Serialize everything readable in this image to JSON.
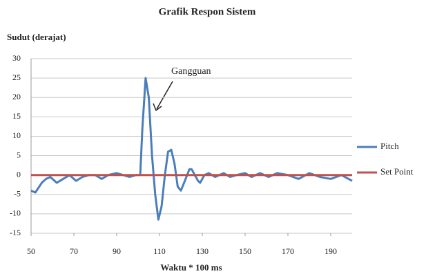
{
  "chart_data": {
    "type": "line",
    "title": "Grafik Respon Sistem",
    "ylabel": "Sudut (derajat)",
    "xlabel": "Waktu * 100 ms",
    "annotation": "Gangguan",
    "xlim": [
      50,
      200
    ],
    "xticks": [
      50,
      70,
      90,
      110,
      130,
      150,
      170,
      190
    ],
    "ylim": [
      -15,
      30
    ],
    "yticks": [
      -15,
      -10,
      -5,
      0,
      5,
      10,
      15,
      20,
      25,
      30
    ],
    "grid": true,
    "legend": "right",
    "series": [
      {
        "name": "Pitch",
        "color": "#4a7ebb",
        "x": [
          50,
          52,
          55,
          57,
          59,
          62,
          65,
          68,
          71,
          74,
          77,
          80,
          83,
          86,
          90,
          93,
          96,
          99,
          101,
          102,
          103.5,
          105,
          106.5,
          108,
          109.5,
          111,
          112.5,
          114,
          115.5,
          117,
          118.5,
          120,
          121.5,
          124,
          125,
          128,
          129,
          131,
          133,
          136,
          140,
          143,
          146,
          150,
          153,
          157,
          161,
          165,
          170,
          175,
          180,
          185,
          190,
          195,
          200
        ],
        "values": [
          -4,
          -4.5,
          -2,
          -1,
          -0.5,
          -2,
          -1,
          0,
          -1.5,
          -0.5,
          0,
          0,
          -1,
          0,
          0.5,
          0,
          -0.5,
          0,
          0,
          12,
          25,
          20,
          5,
          -5,
          -11.5,
          -8,
          0,
          6,
          6.5,
          3,
          -3,
          -4,
          -2,
          1.5,
          1.5,
          -1.5,
          -2,
          0,
          0.5,
          -0.5,
          0.5,
          -0.5,
          0,
          0.5,
          -0.5,
          0.5,
          -0.5,
          0.5,
          0,
          -1,
          0.5,
          -0.5,
          -1,
          0,
          -1.5
        ]
      },
      {
        "name": "Set Point",
        "color": "#c0504d",
        "x": [
          50,
          200
        ],
        "values": [
          0,
          0
        ]
      }
    ]
  }
}
